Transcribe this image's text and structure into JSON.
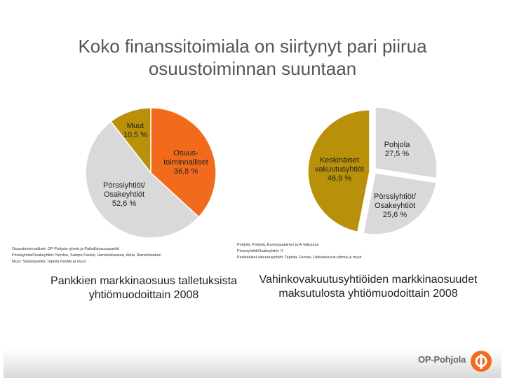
{
  "title": {
    "line1": "Koko finanssitoimiala on siirtynyt pari piirua",
    "line2": "osuustoiminnan suuntaan"
  },
  "chart_data": [
    {
      "type": "pie",
      "title": "Pankkien markkinaosuus talletuksista yhtiömuodoittain 2008",
      "slices": [
        {
          "label": [
            "Muut",
            "10,5 %"
          ],
          "value": 10.5,
          "color": "#b8900a"
        },
        {
          "label": [
            "Osuus-",
            "toiminnalliset",
            "36,8 %"
          ],
          "value": 36.8,
          "color": "#f26b1d"
        },
        {
          "label": [
            "Pörssiyhtiöt/",
            "Osakeyhtiöt",
            "52,6 %"
          ],
          "value": 52.6,
          "color": "#d9d9d9"
        }
      ]
    },
    {
      "type": "pie",
      "title": "Vahinkovakuutusyhtiöiden markkinaosuudet maksutulosta yhtiömuodoittain 2008",
      "slices": [
        {
          "label": [
            "Pohjola",
            "27,5 %"
          ],
          "value": 27.5,
          "color": "#d9d9d9"
        },
        {
          "label": [
            "Pörssiyhtiöt/",
            "Osakeyhtiöt",
            "25,6 %"
          ],
          "value": 25.6,
          "color": "#d9d9d9"
        },
        {
          "label": [
            "Keskinäiset",
            "vakuutusyhtiöt",
            "46,9 %"
          ],
          "value": 46.9,
          "color": "#b8900a"
        }
      ]
    }
  ],
  "notes": {
    "left": [
      "Osuustoiminnalliset: OP-Pohjola-ryhmä ja Paikallisosuuspankit",
      "Pörssiyhtiöt/Osakeyhtiöt: Nordea, Sampo Pankki, Handelsbanken, Aktia, Ålandsbanken",
      "Muut: Säästöpankit, Tapiola Pankki ja muut"
    ],
    "right": [
      "Pohjola: Pohjola, Eurooppalainen ja A-Vakuutus",
      "Pörssiyhtiöt/Osakeyhtiöt: If",
      "Keskinäiset vakuutusyhtiöt: Tapiola, Fennia, Lähivakuutus-ryhmä ja muut"
    ]
  },
  "captions": {
    "left": [
      "Pankkien markkinaosuus talletuksista",
      "yhtiömuodoittain 2008"
    ],
    "right": [
      "Vahinkovakuutusyhtiöiden markkinaosuudet",
      "maksutulosta yhtiömuodoittain 2008"
    ]
  },
  "footer": {
    "brand": "OP-Pohjola",
    "brand_color": "#f26b1d"
  }
}
